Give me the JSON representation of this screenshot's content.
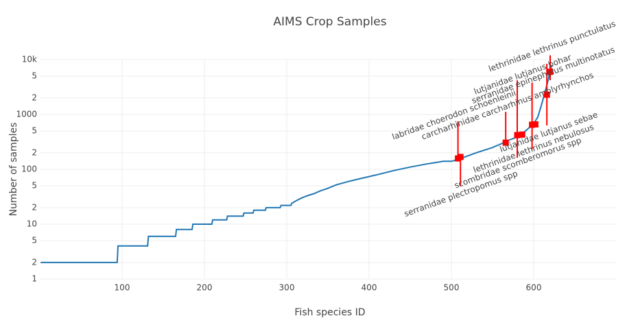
{
  "chart_data": {
    "type": "line",
    "title": "AIMS Crop Samples",
    "x_label": "Fish species ID",
    "y_label": "Number of samples",
    "log_y": true,
    "grid": true,
    "color": "#1f77b4",
    "xlim": [
      0,
      700
    ],
    "xticks": [
      100,
      200,
      300,
      400,
      500,
      600
    ],
    "ylim": [
      1,
      10000
    ],
    "yticks": [
      1,
      2,
      5,
      10,
      {
        "value": 20,
        "label": "2"
      },
      {
        "value": 50,
        "label": "5"
      },
      100,
      {
        "value": 200,
        "label": "2"
      },
      {
        "value": 500,
        "label": "5"
      },
      1000,
      {
        "value": 2000,
        "label": "2"
      },
      {
        "value": 5000,
        "label": "5"
      },
      {
        "value": 10000,
        "label": "10k"
      }
    ],
    "x": [
      1,
      94,
      95,
      131,
      132,
      165,
      166,
      185,
      186,
      209,
      210,
      227,
      228,
      247,
      248,
      259,
      260,
      274,
      275,
      292,
      293,
      305,
      306,
      312,
      318,
      325,
      333,
      340,
      350,
      360,
      375,
      390,
      410,
      430,
      450,
      470,
      490,
      500,
      510,
      530,
      550,
      560,
      570,
      580,
      590,
      600,
      605,
      610,
      615,
      618,
      620,
      622
    ],
    "values": [
      2,
      2,
      4,
      4,
      6,
      6,
      8,
      8,
      10,
      10,
      12,
      12,
      14,
      14,
      16,
      16,
      18,
      18,
      20,
      20,
      22,
      22,
      24,
      27,
      30,
      33,
      36,
      40,
      45,
      52,
      60,
      68,
      80,
      95,
      110,
      125,
      140,
      140,
      155,
      200,
      250,
      290,
      340,
      390,
      500,
      680,
      900,
      1600,
      3000,
      4500,
      6500,
      8000
    ],
    "markers": {
      "color": "#ff0000",
      "x": [
        508,
        511,
        566,
        580,
        586,
        598,
        602,
        616,
        620
      ],
      "values": [
        158,
        168,
        306,
        420,
        430,
        650,
        660,
        2300,
        6000
      ],
      "high": [
        750,
        168,
        1120,
        4200,
        430,
        3800,
        660,
        8400,
        12000
      ],
      "low": [
        158,
        49,
        306,
        163,
        430,
        230,
        660,
        630,
        4200
      ],
      "labels": [
        "serranidae plectropomus spp",
        "scombridae scomberomorus spp",
        "labridae choerodon schoenleinii",
        "lethrinidae lethrinus nebulosus",
        "carcharhinidae carcharhinus amblyrhynchos",
        "lutjanidae lutjanus sebae",
        "lutjanidae lutjanus bohar",
        "serranidae epinephelus multinotatus",
        "lethrinidae lethrinus punctulatus"
      ]
    }
  }
}
